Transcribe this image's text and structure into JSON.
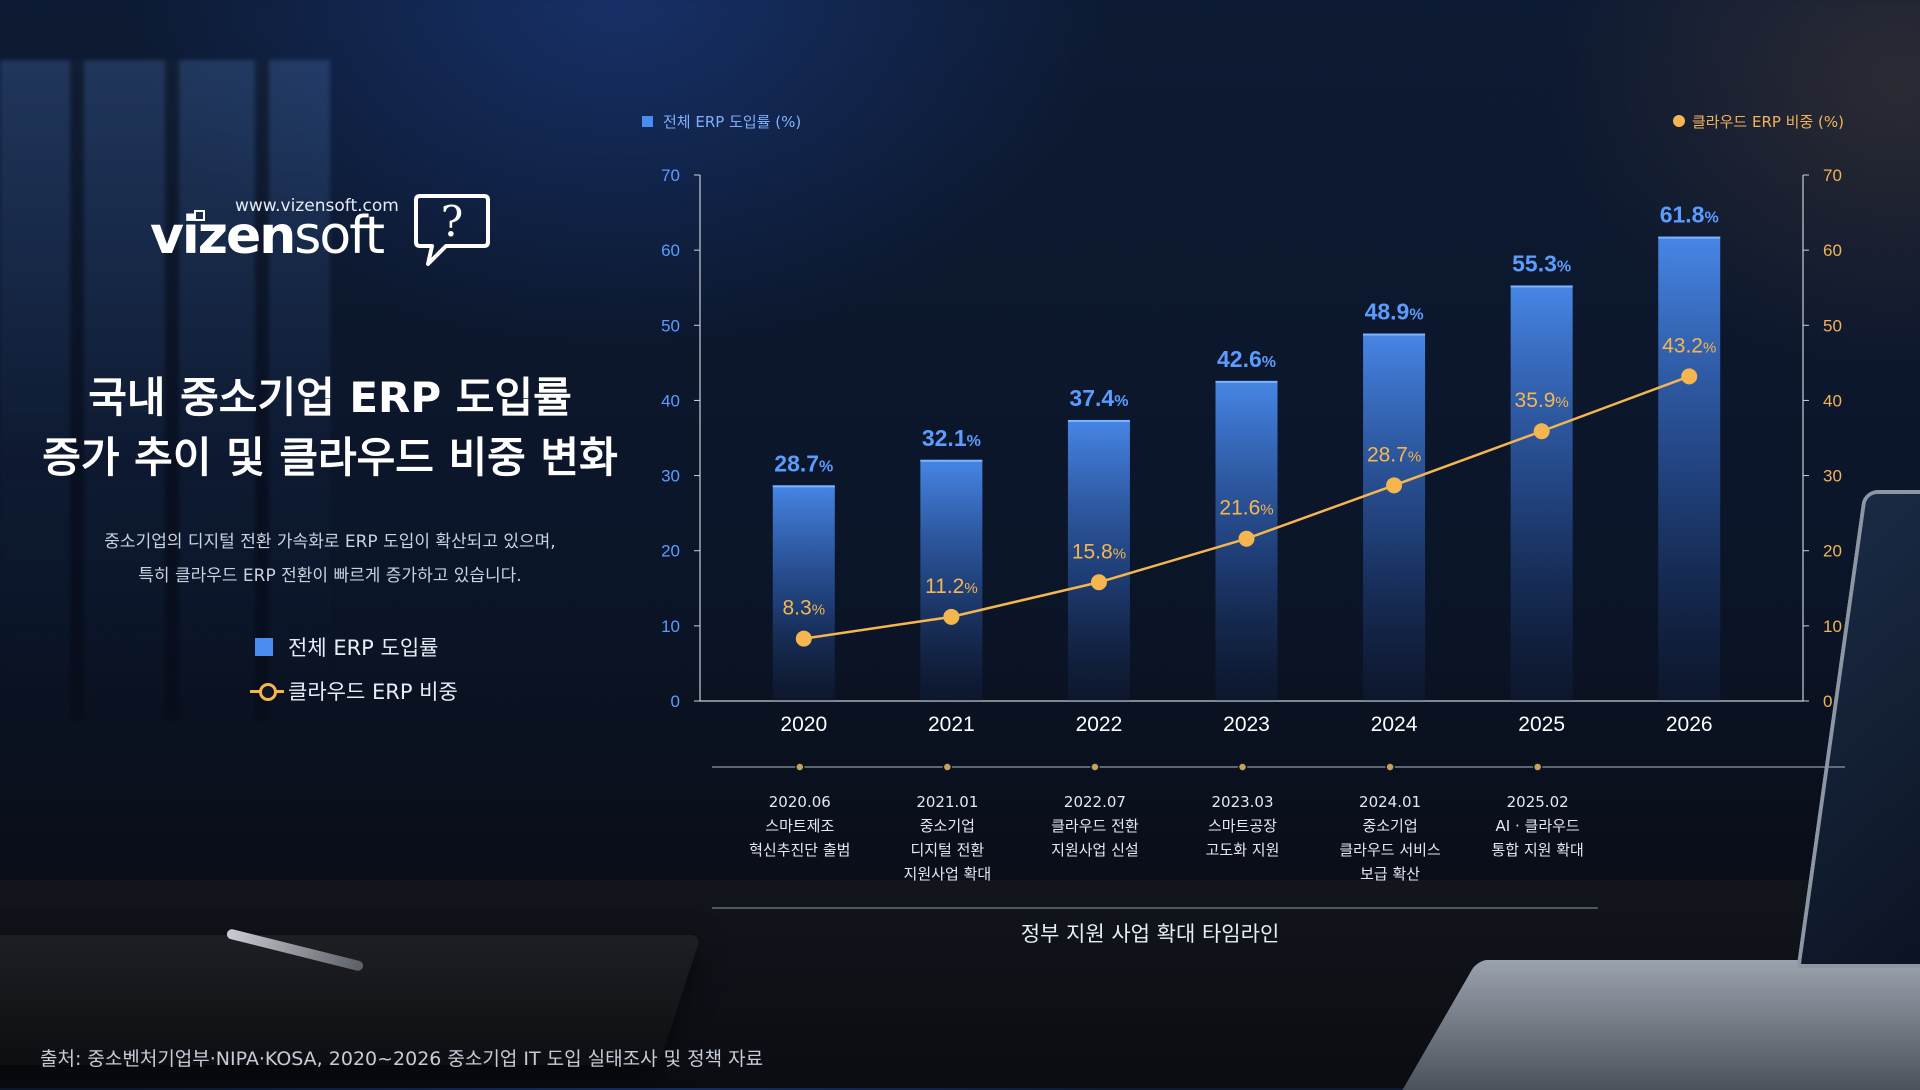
{
  "logo": {
    "url": "www.vizensoft.com",
    "word_bold": "vizen",
    "word_light": "soft",
    "bubble_icon": "question-mark-speech-bubble-icon"
  },
  "title_lines": [
    "국내 중소기업 ERP 도입률",
    "증가 추이 및 클라우드 비중 변화"
  ],
  "subtitle_lines": [
    "중소기업의 디지털 전환 가속화로 ERP 도입이 확산되고 있으며,",
    "특히 클라우드 ERP 전환이 빠르게 증가하고 있습니다."
  ],
  "legend": {
    "bar_label": "전체 ERP 도입률",
    "line_label": "클라우드 ERP 비중"
  },
  "colors": {
    "bar": "#4a8cf0",
    "bar_label": "#5b9cff",
    "line": "#f5b650",
    "axis": "#c8cfd9"
  },
  "chart_data": {
    "type": "bar+line",
    "categories": [
      "2020",
      "2021",
      "2022",
      "2023",
      "2024",
      "2025",
      "2026"
    ],
    "series": [
      {
        "name": "전체 ERP 도입률 (%)",
        "type": "bar",
        "axis": "left",
        "values": [
          28.7,
          32.1,
          37.4,
          42.6,
          48.9,
          55.3,
          61.8
        ]
      },
      {
        "name": "클라우드 ERP 비중 (%)",
        "type": "line",
        "axis": "right",
        "values": [
          8.3,
          11.2,
          15.8,
          21.6,
          28.7,
          35.9,
          43.2
        ]
      }
    ],
    "data_label_unit": "%",
    "ylim_left": [
      0,
      70
    ],
    "ylim_right": [
      0,
      70
    ],
    "yticks": [
      0,
      10,
      20,
      30,
      40,
      50,
      60,
      70
    ],
    "legend_position": "top"
  },
  "timeline": {
    "title": "정부 지원 사업 확대 타임라인",
    "events": [
      {
        "date": "2020.06",
        "lines": [
          "스마트제조",
          "혁신추진단 출범"
        ]
      },
      {
        "date": "2021.01",
        "lines": [
          "중소기업",
          "디지털 전환",
          "지원사업 확대"
        ]
      },
      {
        "date": "2022.07",
        "lines": [
          "클라우드 전환",
          "지원사업 신설"
        ]
      },
      {
        "date": "2023.03",
        "lines": [
          "스마트공장",
          "고도화 지원"
        ]
      },
      {
        "date": "2024.01",
        "lines": [
          "중소기업",
          "클라우드 서비스",
          "보급 확산"
        ]
      },
      {
        "date": "2025.02",
        "lines": [
          "AI · 클라우드",
          "통합 지원 확대"
        ]
      }
    ]
  },
  "source": "출처: 중소벤처기업부·NIPA·KOSA, 2020~2026 중소기업 IT 도입 실태조사 및 정책 자료"
}
